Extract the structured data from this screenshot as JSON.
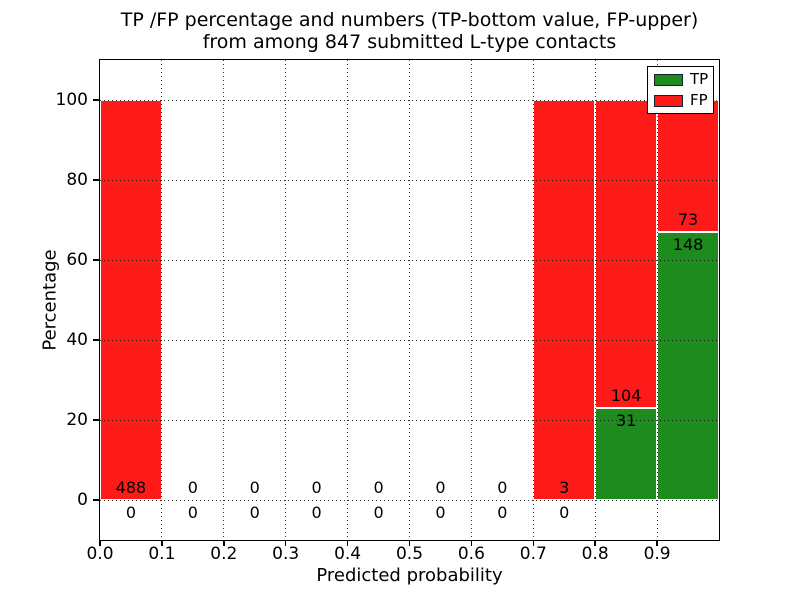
{
  "figure": {
    "title_line1": "TP /FP percentage and numbers (TP-bottom value, FP-upper)",
    "title_line2": "from among 847 submitted L-type contacts"
  },
  "chart_data": {
    "type": "bar",
    "stacked": true,
    "title": "TP /FP percentage and numbers (TP-bottom value, FP-upper) from among 847 submitted L-type contacts",
    "xlabel": "Predicted probability",
    "ylabel": "Percentage",
    "xlim": [
      0.0,
      1.0
    ],
    "ylim": [
      -10,
      110
    ],
    "xtick_labels": [
      "0.0",
      "0.1",
      "0.2",
      "0.3",
      "0.4",
      "0.5",
      "0.6",
      "0.7",
      "0.8",
      "0.9"
    ],
    "ytick_values": [
      0,
      20,
      40,
      60,
      80,
      100
    ],
    "grid": "dotted black, drawn over bars",
    "bin_width": 0.1,
    "categories": [
      "0.0-0.1",
      "0.1-0.2",
      "0.2-0.3",
      "0.3-0.4",
      "0.4-0.5",
      "0.5-0.6",
      "0.6-0.7",
      "0.7-0.8",
      "0.8-0.9",
      "0.9-1.0"
    ],
    "series": [
      {
        "name": "TP",
        "color": "#1e8b1e",
        "counts": [
          0,
          0,
          0,
          0,
          0,
          0,
          0,
          0,
          31,
          148
        ],
        "percent": [
          0,
          0,
          0,
          0,
          0,
          0,
          0,
          0,
          22.96,
          66.97
        ]
      },
      {
        "name": "FP",
        "color": "#ff1a1a",
        "counts": [
          488,
          0,
          0,
          0,
          0,
          0,
          0,
          3,
          104,
          73
        ],
        "percent": [
          100,
          0,
          0,
          0,
          0,
          0,
          0,
          100,
          77.04,
          33.03
        ]
      }
    ],
    "total_contacts": 847,
    "legend": {
      "position": "upper right",
      "entries": [
        {
          "label": "TP",
          "color": "#1e8b1e"
        },
        {
          "label": "FP",
          "color": "#ff1a1a"
        }
      ]
    }
  }
}
